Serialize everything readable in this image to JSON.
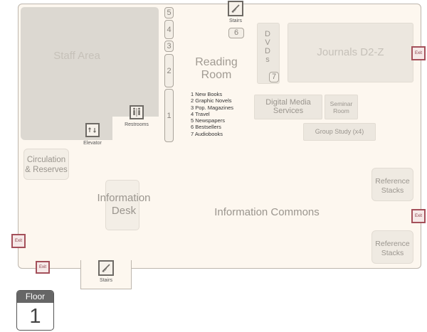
{
  "rooms": {
    "staff_area": "Staff Area",
    "reading_room_line1": "Reading",
    "reading_room_line2": "Room",
    "dvds": [
      "D",
      "V",
      "D",
      "s"
    ],
    "journals": "Journals D2-Z",
    "digital_media_line1": "Digital Media",
    "digital_media_line2": "Services",
    "seminar_line1": "Seminar",
    "seminar_line2": "Room",
    "group_study": "Group Study (x4)",
    "circulation_line1": "Circulation",
    "circulation_line2": "& Reserves",
    "info_desk_line1": "Information",
    "info_desk_line2": "Desk",
    "info_commons": "Information Commons",
    "reference_stacks_line1": "Reference",
    "reference_stacks_line2": "Stacks"
  },
  "shelves": [
    "5",
    "4",
    "3",
    "2",
    "1",
    "6",
    "7"
  ],
  "legend": [
    "1 New Books",
    "2 Graphic Novels",
    "3 Pop. Magazines",
    "4 Travel",
    "5 Newspapers",
    "6 Bestsellers",
    "7 Audiobooks"
  ],
  "labels": {
    "stairs": "Stairs",
    "elevator": "Elevator",
    "restrooms": "Restrooms",
    "exit": "Exit"
  },
  "floor_badge": {
    "label": "Floor",
    "number": "1"
  },
  "colors": {
    "floor_fill": "#fdf7ef",
    "room_fill": "#ece7df",
    "staff_fill": "#dcd8d1",
    "exit_border": "#a4505a"
  }
}
